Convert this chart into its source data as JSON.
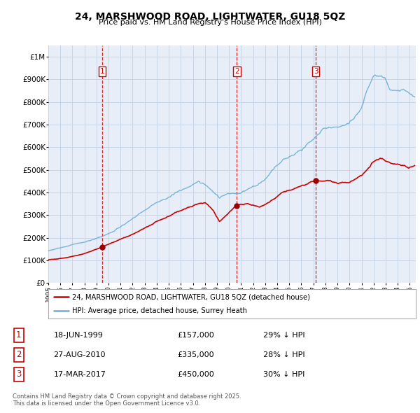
{
  "title": "24, MARSHWOOD ROAD, LIGHTWATER, GU18 5QZ",
  "subtitle": "Price paid vs. HM Land Registry's House Price Index (HPI)",
  "legend_line1": "24, MARSHWOOD ROAD, LIGHTWATER, GU18 5QZ (detached house)",
  "legend_line2": "HPI: Average price, detached house, Surrey Heath",
  "transactions": [
    {
      "label": "1",
      "date": "18-JUN-1999",
      "price": 157000,
      "hpi_diff": "29% ↓ HPI",
      "year": 1999.46
    },
    {
      "label": "2",
      "date": "27-AUG-2010",
      "price": 335000,
      "hpi_diff": "28% ↓ HPI",
      "year": 2010.65
    },
    {
      "label": "3",
      "date": "17-MAR-2017",
      "price": 450000,
      "hpi_diff": "30% ↓ HPI",
      "year": 2017.21
    }
  ],
  "footnote": "Contains HM Land Registry data © Crown copyright and database right 2025.\nThis data is licensed under the Open Government Licence v3.0.",
  "red_color": "#cc0000",
  "blue_color": "#6baed6",
  "dot_color": "#990000",
  "background_color": "#e8eef8",
  "grid_color": "#c8d4e8",
  "ylim": [
    0,
    1050000
  ],
  "xlim_start": 1995.0,
  "xlim_end": 2025.5
}
